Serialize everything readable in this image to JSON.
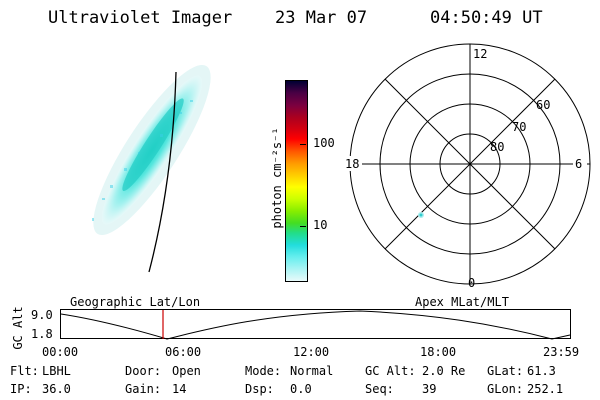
{
  "header": {
    "title": "Ultraviolet Imager",
    "date": "23 Mar 07",
    "time": "04:50:49 UT"
  },
  "colorbar": {
    "unit_label": "photon cm⁻²s⁻¹",
    "ticks": [
      {
        "label": "100",
        "value": 100
      },
      {
        "label": "10",
        "value": 10
      }
    ],
    "colors": [
      "#000033",
      "#4a0044",
      "#7a0040",
      "#aa0020",
      "#d40010",
      "#ff0000",
      "#ff5500",
      "#ff9900",
      "#ffcc00",
      "#ffff00",
      "#ccff00",
      "#88ee00",
      "#44dd22",
      "#22dd88",
      "#22dddd",
      "#66eeee",
      "#aaf4f4",
      "#e8fafa"
    ]
  },
  "polar": {
    "mlt_labels": {
      "top": "12",
      "left": "18",
      "right": "6",
      "bottom": "0"
    },
    "lat_labels": [
      "60",
      "70",
      "80"
    ]
  },
  "timeline": {
    "left_label": "Geographic Lat/Lon",
    "right_label": "Apex MLat/MLT",
    "axis_title": "GC Alt",
    "y_ticks": [
      "9.0",
      "1.8"
    ],
    "x_ticks": [
      "00:00",
      "06:00",
      "12:00",
      "18:00",
      "23:59"
    ]
  },
  "status": {
    "row1": [
      {
        "key": "Flt:",
        "value": "LBHL"
      },
      {
        "key": "Door:",
        "value": "Open"
      },
      {
        "key": "Mode:",
        "value": "Normal"
      },
      {
        "key": "GC Alt:",
        "value": "2.0 Re"
      },
      {
        "key": "GLat:",
        "value": "61.3"
      }
    ],
    "row2": [
      {
        "key": "IP:",
        "value": "36.0"
      },
      {
        "key": "Gain:",
        "value": "14"
      },
      {
        "key": "Dsp:",
        "value": "0.0"
      },
      {
        "key": "Seq:",
        "value": "39"
      },
      {
        "key": "GLon:",
        "value": "252.1"
      }
    ]
  }
}
